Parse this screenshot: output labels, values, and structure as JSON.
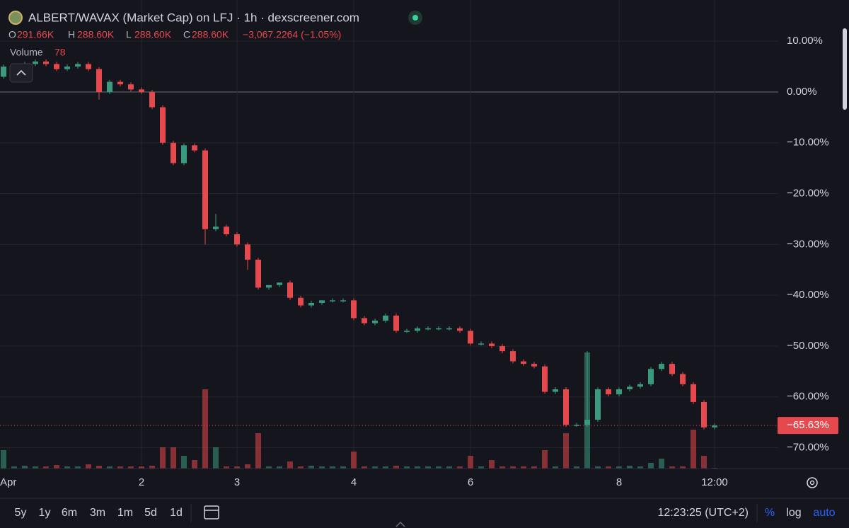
{
  "header": {
    "title": "ALBERT/WAVAX (Market Cap) on LFJ · 1h · dexscreener.com",
    "ohlc": [
      {
        "key": "O",
        "value": "291.66K"
      },
      {
        "key": "H",
        "value": "288.60K"
      },
      {
        "key": "L",
        "value": "288.60K"
      },
      {
        "key": "C",
        "value": "288.60K"
      }
    ],
    "change": "−3,067.2264 (−1.05%)",
    "volume_label": "Volume"
  },
  "chart_data": {
    "type": "candlestick",
    "categories": [
      "Apr",
      null,
      null,
      null,
      null,
      null,
      null,
      null,
      null,
      null,
      null,
      null,
      null,
      "2",
      null,
      null,
      null,
      null,
      null,
      null,
      null,
      null,
      "3",
      null,
      null,
      null,
      null,
      null,
      null,
      null,
      null,
      null,
      null,
      "4",
      null,
      null,
      null,
      null,
      null,
      null,
      null,
      null,
      null,
      null,
      "6",
      null,
      null,
      null,
      null,
      null,
      null,
      null,
      null,
      null,
      null,
      null,
      null,
      null,
      "8",
      null,
      null,
      null,
      null,
      null,
      null,
      null,
      null,
      "12:00"
    ],
    "open": [
      3,
      5,
      5,
      5.5,
      6,
      5.5,
      4.5,
      5,
      5.5,
      4.5,
      0,
      2,
      1.5,
      0.5,
      0,
      -3,
      -10,
      -14,
      -10.5,
      -11.5,
      -27,
      -26.5,
      -28,
      -30,
      -33,
      -38.5,
      -38,
      -37.5,
      -40.5,
      -42,
      -41.5,
      -41,
      -41,
      -41,
      -44.5,
      -45.5,
      -45,
      -44,
      -47,
      -47,
      -46.5,
      -46.5,
      -46.5,
      -46.5,
      -47,
      -49.5,
      -49.5,
      -50,
      -51,
      -53,
      -53.5,
      -54,
      -59,
      -58.5,
      -65.5,
      -65.5,
      -64.5,
      -58.5,
      -59.5,
      -58.5,
      -58,
      -57.5,
      -54.5,
      -53.5,
      -55.5,
      -57.5,
      -61,
      -66
    ],
    "high": [
      5.4,
      5.4,
      5.9,
      6.4,
      6.4,
      5.9,
      5.4,
      5.9,
      5.9,
      4.9,
      2.4,
      2.4,
      1.9,
      0.9,
      0.4,
      -2.6,
      -9.6,
      -10.1,
      -10.1,
      -11.1,
      -24,
      -26.1,
      -27.6,
      -29.6,
      -32.6,
      -38.1,
      -37.6,
      -37.1,
      -40.1,
      -41.1,
      -41.1,
      -40.6,
      -40.6,
      -40.6,
      -44.1,
      -44.6,
      -43.6,
      -43.6,
      -46.6,
      -46.1,
      -46.1,
      -46.1,
      -46.1,
      -46.1,
      -46.6,
      -49.1,
      -49.1,
      -49.6,
      -50.6,
      -52.6,
      -53.1,
      -53.6,
      -58.1,
      -58.1,
      -65.1,
      -51,
      -58.1,
      -58.1,
      -58.1,
      -57.6,
      -57.1,
      -54.1,
      -53.1,
      -53.1,
      -55.1,
      -57.1,
      -60.6,
      -65.23
    ],
    "low": [
      2.6,
      4.6,
      4.6,
      5.1,
      5.1,
      4.1,
      4.1,
      4.6,
      4.1,
      -1.5,
      -0.4,
      1.1,
      0.1,
      -0.4,
      -3.4,
      -10.4,
      -14.4,
      -14.4,
      -11.9,
      -30,
      -27.4,
      -28.4,
      -30.4,
      -35,
      -38.9,
      -38.9,
      -38.4,
      -40.9,
      -42.4,
      -42.4,
      -41.9,
      -41.4,
      -41.4,
      -44.9,
      -45.9,
      -45.9,
      -45.4,
      -47.4,
      -47.4,
      -47.4,
      -46.9,
      -46.9,
      -46.9,
      -47.4,
      -49.9,
      -49.9,
      -50.4,
      -51.4,
      -53.4,
      -53.9,
      -54.4,
      -59.4,
      -59.4,
      -65.9,
      -65.9,
      -65.9,
      -64.9,
      -59.9,
      -59.9,
      -58.9,
      -58.4,
      -57.9,
      -54.9,
      -55.9,
      -57.9,
      -61.4,
      -66.4,
      -66.4
    ],
    "close": [
      5,
      5,
      5.5,
      6,
      5.5,
      4.5,
      5,
      5.5,
      4.5,
      0,
      2,
      1.5,
      0.5,
      0,
      -3,
      -10,
      -14,
      -10.5,
      -11.5,
      -27,
      -26.5,
      -28,
      -30,
      -33,
      -38.5,
      -38,
      -37.5,
      -40.5,
      -42,
      -41.5,
      -41,
      -41,
      -41,
      -44.5,
      -45.5,
      -45,
      -44,
      -47,
      -47,
      -46.5,
      -46.5,
      -46.5,
      -46.5,
      -47,
      -49.5,
      -49.5,
      -50,
      -51,
      -53,
      -53.5,
      -54,
      -59,
      -58.5,
      -65.5,
      -65.5,
      -64.5,
      -58.5,
      -59.5,
      -58.5,
      -58,
      -57.5,
      -54.5,
      -53.5,
      -55.5,
      -57.5,
      -61,
      -66,
      -65.63
    ],
    "volume": [
      2028,
      234,
      312,
      234,
      234,
      390,
      234,
      234,
      468,
      312,
      234,
      234,
      234,
      234,
      312,
      2340,
      2340,
      1404,
      936,
      8736,
      2340,
      234,
      234,
      468,
      3900,
      234,
      234,
      780,
      234,
      312,
      234,
      234,
      234,
      1872,
      234,
      234,
      234,
      312,
      234,
      234,
      234,
      234,
      234,
      234,
      1404,
      234,
      936,
      234,
      234,
      234,
      234,
      2028,
      234,
      3900,
      234,
      12792,
      234,
      234,
      234,
      312,
      234,
      624,
      1092,
      234,
      234,
      4290,
      1404,
      78
    ],
    "up_color": "#3a9a7f",
    "down_color": "#e5484d",
    "ylim": [
      -74.1,
      18.1
    ],
    "yticks": [
      {
        "value": 10,
        "label": "10.00%"
      },
      {
        "value": 0,
        "label": "0.00%"
      },
      {
        "value": -10,
        "label": "−10.00%"
      },
      {
        "value": -20,
        "label": "−20.00%"
      },
      {
        "value": -30,
        "label": "−30.00%"
      },
      {
        "value": -40,
        "label": "−40.00%"
      },
      {
        "value": -50,
        "label": "−50.00%"
      },
      {
        "value": -60,
        "label": "−60.00%"
      },
      {
        "value": -70,
        "label": "−70.00%"
      }
    ],
    "last_price": {
      "value": -65.63,
      "label": "−65.63%"
    },
    "grid": true
  },
  "toolbar": {
    "ranges": [
      "5y",
      "1y",
      "6m",
      "3m",
      "1m",
      "5d",
      "1d"
    ],
    "time": "12:23:25 (UTC+2)",
    "modes": [
      "%",
      "log",
      "auto"
    ]
  }
}
